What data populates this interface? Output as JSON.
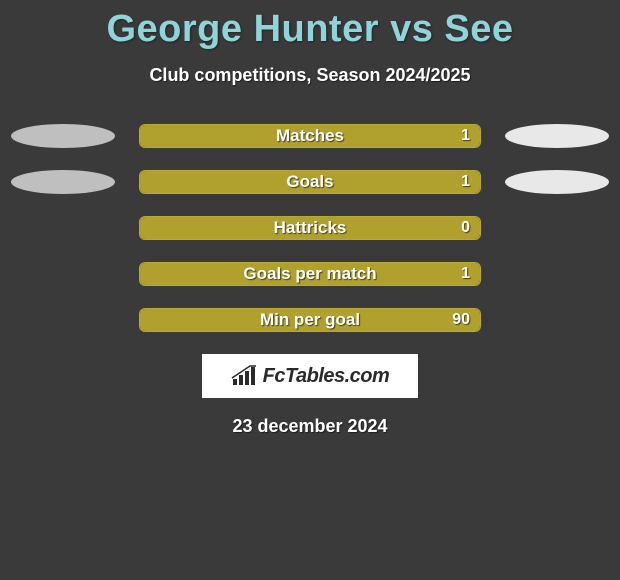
{
  "title": "George Hunter vs See",
  "subtitle": "Club competitions, Season 2024/2025",
  "date": "23 december 2024",
  "logo": {
    "text": "FcTables.com"
  },
  "colors": {
    "background": "#3a3a3a",
    "title": "#8fd4d9",
    "bar_fill": "#b0a02e",
    "bar_border": "#b8a831",
    "ellipse_left": "#bfbfbf",
    "ellipse_right": "#e8e8e8",
    "text": "#ffffff"
  },
  "stats": [
    {
      "label": "Matches",
      "value": "1",
      "fill_pct": 100,
      "show_ellipses": true
    },
    {
      "label": "Goals",
      "value": "1",
      "fill_pct": 100,
      "show_ellipses": true
    },
    {
      "label": "Hattricks",
      "value": "0",
      "fill_pct": 100,
      "show_ellipses": false
    },
    {
      "label": "Goals per match",
      "value": "1",
      "fill_pct": 100,
      "show_ellipses": false
    },
    {
      "label": "Min per goal",
      "value": "90",
      "fill_pct": 100,
      "show_ellipses": false
    }
  ]
}
